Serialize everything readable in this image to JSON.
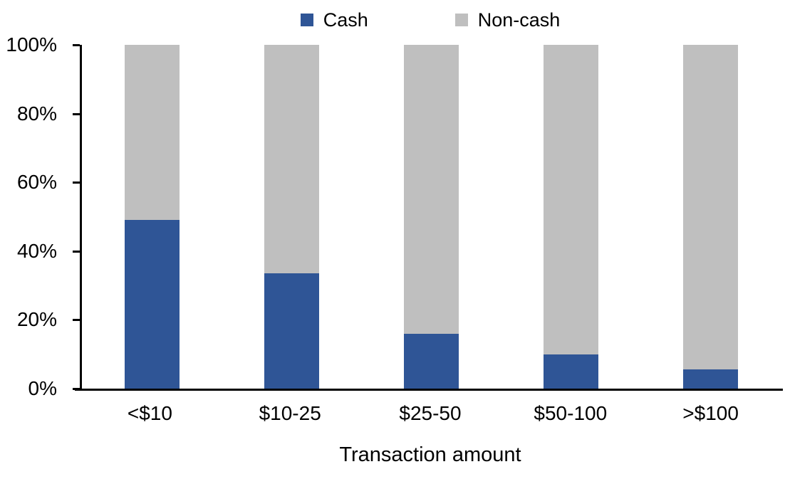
{
  "chart_data": {
    "type": "bar",
    "variant": "stacked-100-percent",
    "title": "",
    "xlabel": "Transaction amount",
    "ylabel": "",
    "categories": [
      "<$10",
      "$10-25",
      "$25-50",
      "$50-100",
      ">$100"
    ],
    "series": [
      {
        "name": "Cash",
        "color": "#2F5596",
        "values": [
          49,
          33.5,
          16,
          10,
          5.5
        ]
      },
      {
        "name": "Non-cash",
        "color": "#BFBFBF",
        "values": [
          51,
          66.5,
          84,
          90,
          94.5
        ]
      }
    ],
    "ylim": [
      0,
      100
    ],
    "yticks": [
      {
        "value": 0,
        "label": "0%"
      },
      {
        "value": 20,
        "label": "20%"
      },
      {
        "value": 40,
        "label": "40%"
      },
      {
        "value": 60,
        "label": "60%"
      },
      {
        "value": 80,
        "label": "80%"
      },
      {
        "value": 100,
        "label": "100%"
      }
    ],
    "grid": false,
    "legend_position": "top-center"
  },
  "colors": {
    "cash": "#2F5596",
    "non_cash": "#BFBFBF",
    "axis": "#000000",
    "background": "#FFFFFF",
    "text": "#000000"
  }
}
